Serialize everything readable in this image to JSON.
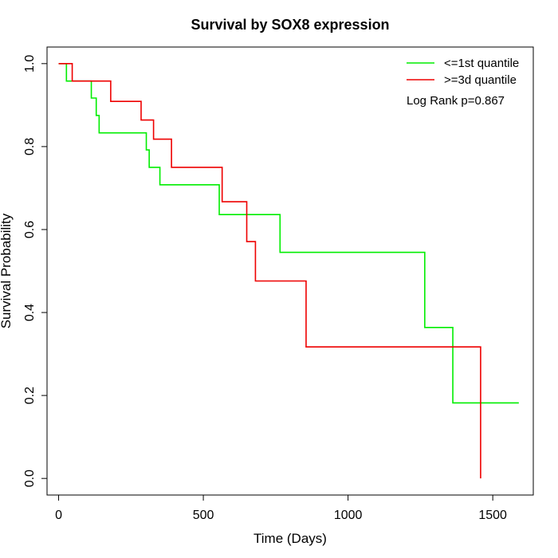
{
  "chart_data": {
    "type": "line",
    "title": "Survival by SOX8 expression",
    "xlabel": "Time (Days)",
    "ylabel": "Survival Probability",
    "xlim": [
      -40,
      1640
    ],
    "ylim": [
      -0.04,
      1.04
    ],
    "x_ticks": [
      0,
      500,
      1000,
      1500
    ],
    "y_ticks": [
      0.0,
      0.2,
      0.4,
      0.6,
      0.8,
      1.0
    ],
    "y_tick_labels": [
      "0.0",
      "0.2",
      "0.4",
      "0.6",
      "0.8",
      "1.0"
    ],
    "grid": false,
    "legend_position": "top-right",
    "annotation": "Log Rank p=0.867",
    "series": [
      {
        "name": "<=1st quantile",
        "color": "#00ee00",
        "x": [
          0,
          27,
          113,
          130,
          140,
          303,
          313,
          325,
          350,
          555,
          765,
          1265,
          1362,
          1590
        ],
        "y": [
          1.0,
          0.958,
          0.917,
          0.875,
          0.833,
          0.792,
          0.75,
          0.75,
          0.708,
          0.636,
          0.545,
          0.364,
          0.182,
          0.182
        ]
      },
      {
        "name": ">=3d quantile",
        "color": "#ee0000",
        "x": [
          0,
          47,
          180,
          285,
          328,
          390,
          565,
          650,
          680,
          855,
          1458,
          1458
        ],
        "y": [
          1.0,
          0.958,
          0.909,
          0.864,
          0.818,
          0.75,
          0.667,
          0.571,
          0.476,
          0.317,
          0.317,
          0.0
        ]
      }
    ]
  }
}
